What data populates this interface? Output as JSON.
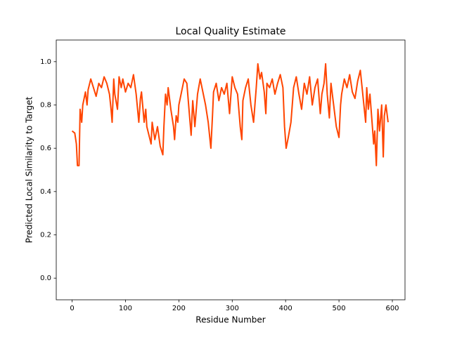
{
  "chart_data": {
    "type": "line",
    "title": "Local Quality Estimate",
    "x_label": "Residue Number",
    "y_label": "Predicted Local Similarity to Target",
    "color": "#ff4500",
    "grid": false,
    "xlim": [
      -29.7,
      623.7
    ],
    "ylim": [
      -0.1,
      1.1
    ],
    "xticks": [
      0,
      100,
      200,
      300,
      400,
      500,
      600
    ],
    "yticks": [
      {
        "value": 0,
        "label": "0.0"
      },
      0.2,
      0.4,
      0.6,
      0.8,
      {
        "value": 1,
        "label": "1.0"
      }
    ],
    "x": [
      0,
      5,
      8,
      10,
      13,
      15,
      18,
      20,
      25,
      28,
      30,
      35,
      40,
      45,
      50,
      55,
      60,
      65,
      70,
      73,
      75,
      78,
      80,
      85,
      88,
      92,
      95,
      100,
      105,
      110,
      115,
      120,
      125,
      128,
      130,
      135,
      138,
      140,
      145,
      148,
      150,
      155,
      160,
      165,
      170,
      172,
      175,
      178,
      180,
      185,
      190,
      192,
      195,
      198,
      200,
      205,
      210,
      215,
      220,
      223,
      226,
      230,
      235,
      240,
      245,
      250,
      255,
      260,
      263,
      265,
      270,
      275,
      280,
      285,
      290,
      295,
      300,
      305,
      310,
      315,
      318,
      320,
      325,
      330,
      335,
      340,
      345,
      348,
      352,
      355,
      360,
      363,
      365,
      370,
      375,
      380,
      385,
      390,
      395,
      398,
      401,
      405,
      410,
      415,
      420,
      425,
      430,
      435,
      440,
      445,
      450,
      455,
      460,
      465,
      468,
      472,
      475,
      478,
      482,
      485,
      490,
      495,
      500,
      503,
      505,
      510,
      515,
      520,
      525,
      530,
      535,
      540,
      545,
      550,
      552,
      555,
      558,
      562,
      565,
      567,
      570,
      573,
      576,
      580,
      583,
      585,
      588,
      592
    ],
    "values": [
      0.68,
      0.67,
      0.62,
      0.52,
      0.52,
      0.78,
      0.72,
      0.8,
      0.86,
      0.8,
      0.87,
      0.92,
      0.88,
      0.84,
      0.9,
      0.88,
      0.93,
      0.9,
      0.85,
      0.78,
      0.72,
      0.92,
      0.85,
      0.78,
      0.93,
      0.88,
      0.92,
      0.86,
      0.9,
      0.88,
      0.94,
      0.85,
      0.72,
      0.83,
      0.86,
      0.72,
      0.78,
      0.7,
      0.65,
      0.62,
      0.72,
      0.64,
      0.7,
      0.61,
      0.57,
      0.7,
      0.85,
      0.8,
      0.88,
      0.78,
      0.7,
      0.64,
      0.75,
      0.72,
      0.8,
      0.86,
      0.92,
      0.9,
      0.75,
      0.66,
      0.82,
      0.7,
      0.85,
      0.92,
      0.86,
      0.8,
      0.72,
      0.6,
      0.75,
      0.86,
      0.9,
      0.82,
      0.88,
      0.85,
      0.9,
      0.76,
      0.93,
      0.88,
      0.85,
      0.7,
      0.64,
      0.82,
      0.88,
      0.92,
      0.8,
      0.72,
      0.88,
      0.99,
      0.92,
      0.95,
      0.86,
      0.76,
      0.9,
      0.88,
      0.92,
      0.85,
      0.9,
      0.94,
      0.88,
      0.7,
      0.6,
      0.65,
      0.72,
      0.88,
      0.93,
      0.85,
      0.78,
      0.9,
      0.85,
      0.93,
      0.8,
      0.88,
      0.92,
      0.76,
      0.85,
      0.9,
      0.99,
      0.85,
      0.74,
      0.9,
      0.8,
      0.7,
      0.65,
      0.8,
      0.85,
      0.92,
      0.88,
      0.94,
      0.86,
      0.83,
      0.91,
      0.96,
      0.84,
      0.72,
      0.88,
      0.78,
      0.85,
      0.72,
      0.62,
      0.68,
      0.52,
      0.78,
      0.68,
      0.8,
      0.56,
      0.75,
      0.8,
      0.72
    ]
  }
}
